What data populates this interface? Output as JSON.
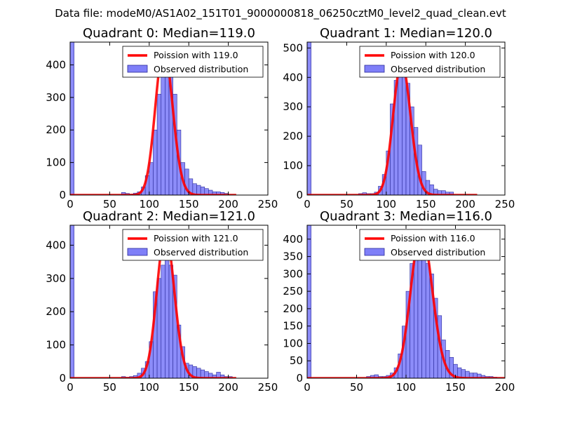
{
  "suptitle": "Data file: modeM0/AS1A02_151T01_9000000818_06250cztM0_level2_quad_clean.evt",
  "colors": {
    "hist_fill": "#7f7ff8",
    "hist_edge": "#2a2a9a",
    "poisson": "#ff0000"
  },
  "chart_data": [
    {
      "type": "bar",
      "title": "Quadrant 0: Median=119.0",
      "xlim": [
        0,
        250
      ],
      "ylim": [
        0,
        470
      ],
      "xticks": [
        0,
        50,
        100,
        150,
        200,
        250
      ],
      "yticks": [
        0,
        100,
        200,
        300,
        400
      ],
      "bin_width": 5,
      "median": 119.0,
      "peak": 450,
      "legend": [
        "Poission with 119.0",
        "Observed distribution"
      ],
      "bins": [
        [
          0,
          470
        ],
        [
          65,
          8
        ],
        [
          70,
          5
        ],
        [
          75,
          3
        ],
        [
          80,
          6
        ],
        [
          85,
          10
        ],
        [
          90,
          25
        ],
        [
          95,
          60
        ],
        [
          100,
          100
        ],
        [
          105,
          200
        ],
        [
          110,
          310
        ],
        [
          115,
          410
        ],
        [
          120,
          450
        ],
        [
          125,
          380
        ],
        [
          130,
          310
        ],
        [
          135,
          200
        ],
        [
          140,
          100
        ],
        [
          145,
          80
        ],
        [
          150,
          50
        ],
        [
          155,
          35
        ],
        [
          160,
          30
        ],
        [
          165,
          25
        ],
        [
          170,
          20
        ],
        [
          175,
          15
        ],
        [
          180,
          10
        ],
        [
          185,
          10
        ],
        [
          190,
          8
        ],
        [
          195,
          5
        ]
      ],
      "poisson_range": [
        0,
        210
      ]
    },
    {
      "type": "bar",
      "title": "Quadrant 1: Median=120.0",
      "xlim": [
        0,
        250
      ],
      "ylim": [
        0,
        520
      ],
      "xticks": [
        0,
        50,
        100,
        150,
        200,
        250
      ],
      "yticks": [
        0,
        100,
        200,
        300,
        400,
        500
      ],
      "bin_width": 5,
      "median": 120.0,
      "peak": 450,
      "legend": [
        "Poission with 120.0",
        "Observed distribution"
      ],
      "bins": [
        [
          0,
          520
        ],
        [
          65,
          5
        ],
        [
          70,
          8
        ],
        [
          75,
          5
        ],
        [
          80,
          5
        ],
        [
          85,
          10
        ],
        [
          90,
          30
        ],
        [
          95,
          70
        ],
        [
          100,
          150
        ],
        [
          105,
          310
        ],
        [
          110,
          390
        ],
        [
          115,
          450
        ],
        [
          120,
          420
        ],
        [
          125,
          380
        ],
        [
          130,
          300
        ],
        [
          135,
          230
        ],
        [
          140,
          170
        ],
        [
          145,
          80
        ],
        [
          150,
          50
        ],
        [
          155,
          35
        ],
        [
          160,
          20
        ],
        [
          165,
          15
        ],
        [
          170,
          15
        ],
        [
          175,
          10
        ],
        [
          180,
          10
        ]
      ],
      "poisson_range": [
        0,
        215
      ]
    },
    {
      "type": "bar",
      "title": "Quadrant 2: Median=121.0",
      "xlim": [
        0,
        250
      ],
      "ylim": [
        0,
        460
      ],
      "xticks": [
        0,
        50,
        100,
        150,
        200,
        250
      ],
      "yticks": [
        0,
        100,
        200,
        300,
        400
      ],
      "bin_width": 5,
      "median": 121.0,
      "peak": 435,
      "legend": [
        "Poission with 121.0",
        "Observed distribution"
      ],
      "bins": [
        [
          0,
          460
        ],
        [
          65,
          5
        ],
        [
          70,
          3
        ],
        [
          75,
          5
        ],
        [
          80,
          8
        ],
        [
          85,
          15
        ],
        [
          90,
          30
        ],
        [
          95,
          50
        ],
        [
          100,
          110
        ],
        [
          105,
          260
        ],
        [
          110,
          300
        ],
        [
          115,
          340
        ],
        [
          120,
          410
        ],
        [
          125,
          340
        ],
        [
          130,
          310
        ],
        [
          135,
          160
        ],
        [
          140,
          95
        ],
        [
          145,
          45
        ],
        [
          150,
          40
        ],
        [
          155,
          35
        ],
        [
          160,
          30
        ],
        [
          165,
          25
        ],
        [
          170,
          20
        ],
        [
          175,
          15
        ],
        [
          180,
          10
        ],
        [
          185,
          18
        ],
        [
          190,
          10
        ],
        [
          195,
          5
        ],
        [
          200,
          5
        ]
      ],
      "poisson_range": [
        0,
        210
      ]
    },
    {
      "type": "bar",
      "title": "Quadrant 3: Median=116.0",
      "xlim": [
        0,
        200
      ],
      "ylim": [
        0,
        440
      ],
      "xticks": [
        0,
        50,
        100,
        150,
        200
      ],
      "yticks": [
        0,
        50,
        100,
        150,
        200,
        250,
        300,
        350,
        400
      ],
      "bin_width": 4,
      "median": 116.0,
      "peak": 425,
      "legend": [
        "Poission with 116.0",
        "Observed distribution"
      ],
      "bins": [
        [
          0,
          440
        ],
        [
          60,
          5
        ],
        [
          64,
          8
        ],
        [
          68,
          10
        ],
        [
          72,
          5
        ],
        [
          76,
          5
        ],
        [
          80,
          8
        ],
        [
          84,
          15
        ],
        [
          88,
          30
        ],
        [
          92,
          70
        ],
        [
          96,
          150
        ],
        [
          100,
          250
        ],
        [
          104,
          330
        ],
        [
          108,
          370
        ],
        [
          112,
          400
        ],
        [
          116,
          380
        ],
        [
          120,
          330
        ],
        [
          124,
          300
        ],
        [
          128,
          230
        ],
        [
          132,
          180
        ],
        [
          136,
          110
        ],
        [
          140,
          80
        ],
        [
          144,
          60
        ],
        [
          148,
          40
        ],
        [
          152,
          30
        ],
        [
          156,
          25
        ],
        [
          160,
          20
        ],
        [
          164,
          15
        ],
        [
          168,
          15
        ],
        [
          172,
          12
        ],
        [
          176,
          8
        ],
        [
          180,
          5
        ],
        [
          184,
          5
        ],
        [
          188,
          3
        ]
      ],
      "poisson_range": [
        0,
        200
      ]
    }
  ]
}
